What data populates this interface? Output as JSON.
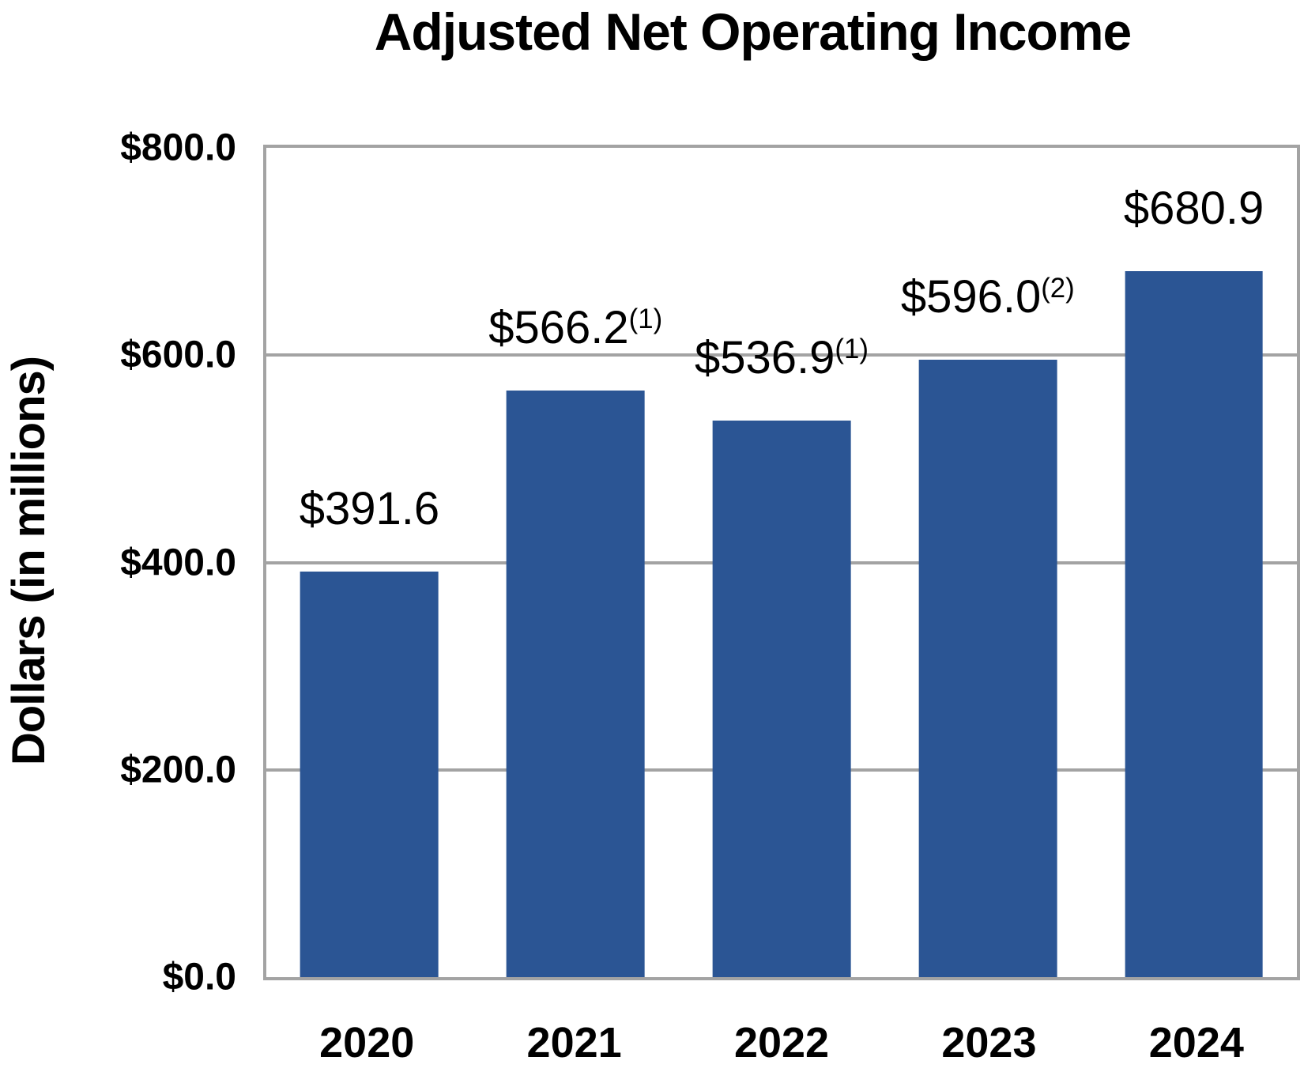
{
  "colors": {
    "bar": "#2b5594",
    "grid": "#a3a3a3",
    "text": "#000000",
    "background": "#ffffff"
  },
  "chart_data": {
    "type": "bar",
    "title": "Adjusted Net Operating Income",
    "ylabel": "Dollars (in millions)",
    "xlabel": "",
    "categories": [
      "2020",
      "2021",
      "2022",
      "2023",
      "2024"
    ],
    "values": [
      391.6,
      566.2,
      536.9,
      596.0,
      680.9
    ],
    "value_labels": [
      {
        "main": "$391.6",
        "sup": ""
      },
      {
        "main": "$566.2",
        "sup": "(1)"
      },
      {
        "main": "$536.9",
        "sup": "(1)"
      },
      {
        "main": "$596.0",
        "sup": "(2)"
      },
      {
        "main": "$680.9",
        "sup": ""
      }
    ],
    "ylim": [
      0,
      800
    ],
    "yticks": [
      {
        "value": 0,
        "label": "$0.0"
      },
      {
        "value": 200,
        "label": "$200.0"
      },
      {
        "value": 400,
        "label": "$400.0"
      },
      {
        "value": 600,
        "label": "$600.0"
      },
      {
        "value": 800,
        "label": "$800.0"
      }
    ],
    "grid": true,
    "legend": false
  }
}
